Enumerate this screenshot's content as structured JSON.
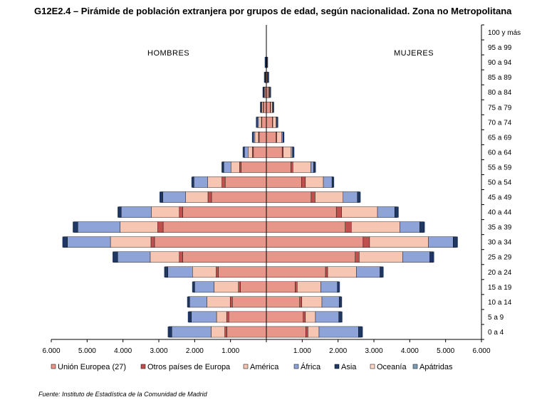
{
  "chart_data": {
    "type": "bar",
    "orientation": "horizontal",
    "layout": "population-pyramid",
    "title": "G12E2.4 – Pirámide de población extranjera por grupos de edad, según nacionalidad. Zona no Metropolitana",
    "left_label": "HOMBRES",
    "right_label": "MUJERES",
    "source": "Fuente: Instituto de Estadística de la Comunidad de Madrid",
    "categories": [
      "0 a 4",
      "5 a 9",
      "10 a 14",
      "15 a 19",
      "20 a 24",
      "25 a 29",
      "30 a 34",
      "35 a 39",
      "40 a 44",
      "45 a 49",
      "50 a 54",
      "55 a 59",
      "60 a 64",
      "65 a 69",
      "70 a 74",
      "75 a 79",
      "80 a 84",
      "85 a 89",
      "90 a 94",
      "95 a 99",
      "100 y más"
    ],
    "x_tick_labels": [
      "6.000",
      "5.000",
      "4.000",
      "3.000",
      "2.000",
      "1.000",
      "",
      "1.000",
      "2.000",
      "3.000",
      "4.000",
      "5.000",
      "6.000"
    ],
    "xlim": [
      -6000,
      6000
    ],
    "legend_position": "bottom",
    "series": [
      {
        "name": "Unión Europea (27)",
        "color": "#e8968a",
        "men": [
          1100,
          1050,
          950,
          720,
          1340,
          2330,
          3120,
          2880,
          2330,
          1530,
          1150,
          700,
          360,
          200,
          130,
          80,
          40,
          20,
          10,
          0,
          0
        ],
        "women": [
          1100,
          1030,
          930,
          800,
          1650,
          2480,
          2700,
          2200,
          1950,
          1250,
          980,
          680,
          440,
          270,
          170,
          110,
          60,
          30,
          10,
          0,
          0
        ]
      },
      {
        "name": "Otros países de Europa",
        "color": "#c0504d",
        "men": [
          60,
          60,
          60,
          60,
          60,
          100,
          100,
          150,
          100,
          100,
          90,
          50,
          30,
          20,
          10,
          10,
          5,
          5,
          0,
          0,
          0
        ],
        "women": [
          60,
          60,
          60,
          60,
          60,
          110,
          180,
          170,
          150,
          110,
          110,
          60,
          30,
          20,
          10,
          10,
          5,
          5,
          0,
          0,
          0
        ]
      },
      {
        "name": "América",
        "color": "#f6c6b2",
        "men": [
          380,
          280,
          650,
          680,
          660,
          810,
          1130,
          1050,
          780,
          620,
          400,
          240,
          120,
          100,
          80,
          40,
          20,
          10,
          5,
          0,
          0
        ],
        "women": [
          310,
          280,
          560,
          660,
          800,
          1210,
          1640,
          1350,
          1000,
          780,
          500,
          500,
          220,
          140,
          90,
          50,
          25,
          10,
          5,
          0,
          0
        ]
      },
      {
        "name": "África",
        "color": "#8ea3d8",
        "men": [
          1100,
          700,
          480,
          540,
          690,
          910,
          1200,
          1180,
          840,
          640,
          380,
          200,
          100,
          40,
          30,
          10,
          5,
          0,
          0,
          0,
          0
        ],
        "women": [
          1100,
          650,
          480,
          460,
          660,
          760,
          690,
          560,
          480,
          400,
          240,
          80,
          40,
          30,
          20,
          10,
          5,
          0,
          0,
          0,
          0
        ]
      },
      {
        "name": "Asia",
        "color": "#1f3864",
        "men": [
          80,
          70,
          40,
          40,
          70,
          110,
          110,
          110,
          70,
          60,
          40,
          30,
          20,
          10,
          10,
          5,
          5,
          0,
          0,
          0,
          0
        ],
        "women": [
          90,
          70,
          50,
          40,
          70,
          90,
          100,
          110,
          80,
          60,
          30,
          30,
          20,
          10,
          10,
          5,
          5,
          0,
          0,
          0,
          0
        ]
      },
      {
        "name": "Oceanía",
        "color": "#fbd9c9",
        "men": [
          0,
          0,
          0,
          0,
          0,
          0,
          0,
          0,
          0,
          0,
          0,
          0,
          0,
          0,
          0,
          0,
          0,
          0,
          0,
          0,
          0
        ],
        "women": [
          0,
          0,
          0,
          0,
          0,
          0,
          0,
          0,
          0,
          0,
          0,
          0,
          0,
          0,
          0,
          0,
          0,
          0,
          0,
          0,
          0
        ]
      },
      {
        "name": "Apátridas",
        "color": "#7f9eb2",
        "men": [
          0,
          0,
          0,
          0,
          0,
          0,
          0,
          0,
          0,
          0,
          0,
          0,
          0,
          0,
          0,
          0,
          0,
          0,
          0,
          0,
          0
        ],
        "women": [
          0,
          0,
          0,
          0,
          0,
          0,
          0,
          0,
          0,
          0,
          0,
          0,
          0,
          0,
          0,
          0,
          0,
          0,
          0,
          0,
          0
        ]
      }
    ]
  }
}
